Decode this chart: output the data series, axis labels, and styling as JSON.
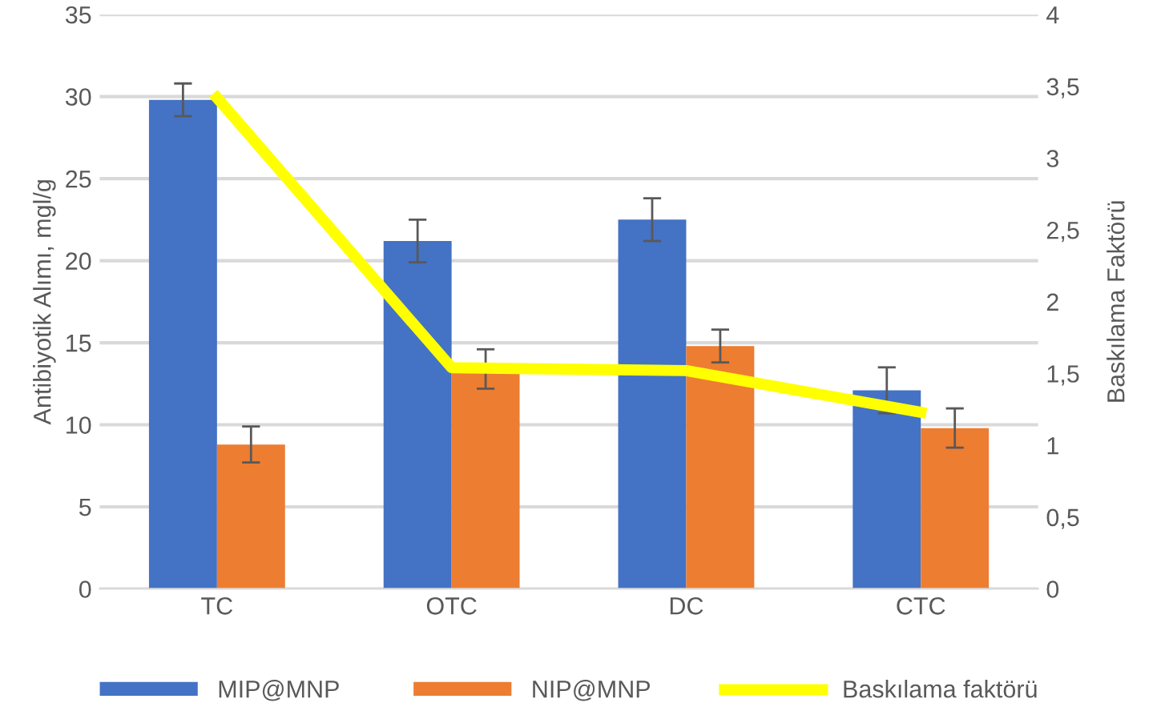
{
  "chart_data": {
    "type": "bar",
    "categories": [
      "TC",
      "OTC",
      "DC",
      "CTC"
    ],
    "ylabel": "Antibiyotik Alımı, mgl/g",
    "y2label": "Baskılama Faktörü",
    "series": [
      {
        "name": "MIP@MNP",
        "color": "#4472c4",
        "values": [
          29.8,
          21.2,
          22.5,
          12.1
        ],
        "errors": [
          1.0,
          1.3,
          1.3,
          1.4
        ]
      },
      {
        "name": "NIP@MNP",
        "color": "#ed7d31",
        "values": [
          8.8,
          13.4,
          14.8,
          9.8
        ],
        "errors": [
          1.1,
          1.2,
          1.0,
          1.2
        ]
      },
      {
        "name": "Baskılama faktörü",
        "type": "line",
        "axis": "y2",
        "color": "#ffff00",
        "values": [
          3.42,
          1.54,
          1.52,
          1.23
        ]
      }
    ],
    "ylim": [
      0,
      35
    ],
    "yticks": [
      0,
      5,
      10,
      15,
      20,
      25,
      30,
      35
    ],
    "y2lim": [
      0,
      4
    ],
    "y2ticks": [
      0,
      {
        "value": 0.5,
        "label": "0,5"
      },
      1,
      {
        "value": 1.5,
        "label": "1,5"
      },
      2,
      {
        "value": 2.5,
        "label": "2,5"
      },
      3,
      {
        "value": 3.5,
        "label": "3,5"
      },
      4
    ],
    "grid": "y",
    "legend": "bottom",
    "marker": "none",
    "line_style": "solid"
  }
}
